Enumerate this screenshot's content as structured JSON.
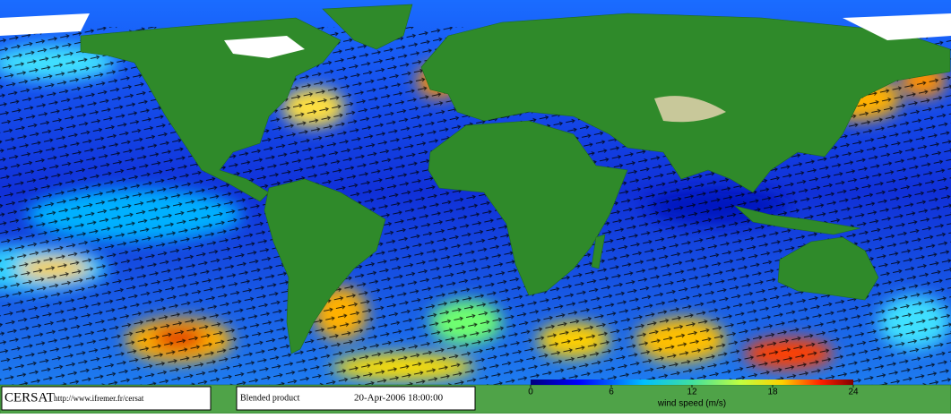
{
  "credit": {
    "logo": "CERSAT",
    "url": "http://www.ifremer.fr/cersat"
  },
  "product": {
    "name": "Blended product",
    "date": "20-Apr-2006 18:00:00"
  },
  "colorbar": {
    "label": "wind speed (m/s)",
    "range": [
      0,
      24
    ],
    "ticks": [
      0,
      6,
      12,
      18,
      24
    ]
  }
}
